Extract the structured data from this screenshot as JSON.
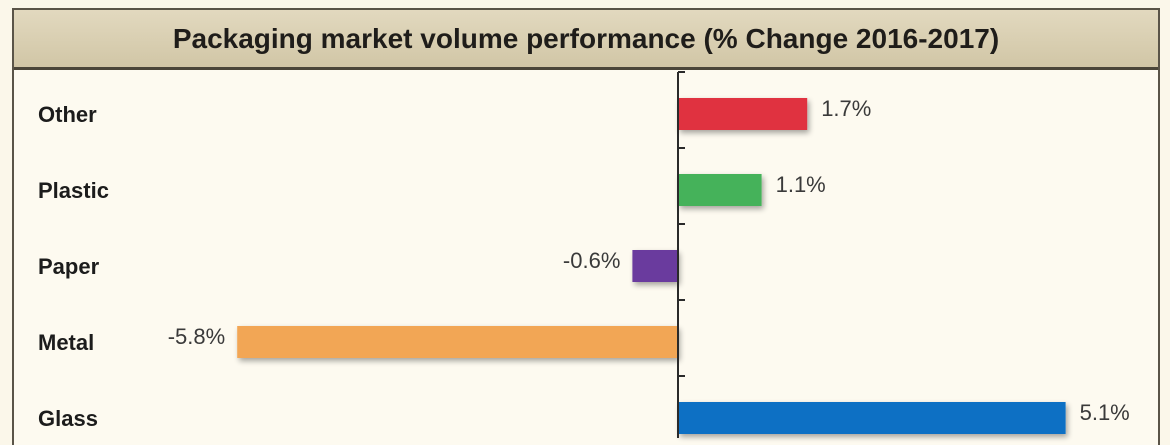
{
  "chart_data": {
    "type": "bar",
    "orientation": "horizontal",
    "title": "Packaging market volume performance (% Change 2016-2017)",
    "categories": [
      "Other",
      "Plastic",
      "Paper",
      "Metal",
      "Glass"
    ],
    "values": [
      1.7,
      1.1,
      -0.6,
      -5.8,
      5.1
    ],
    "value_labels": [
      "1.7%",
      "1.1%",
      "-0.6%",
      "-5.8%",
      "5.1%"
    ],
    "colors": [
      "#e0323f",
      "#44b25a",
      "#6a3a9e",
      "#f2a654",
      "#1170c4"
    ],
    "unit": "%",
    "grid": false,
    "legend": "none"
  }
}
